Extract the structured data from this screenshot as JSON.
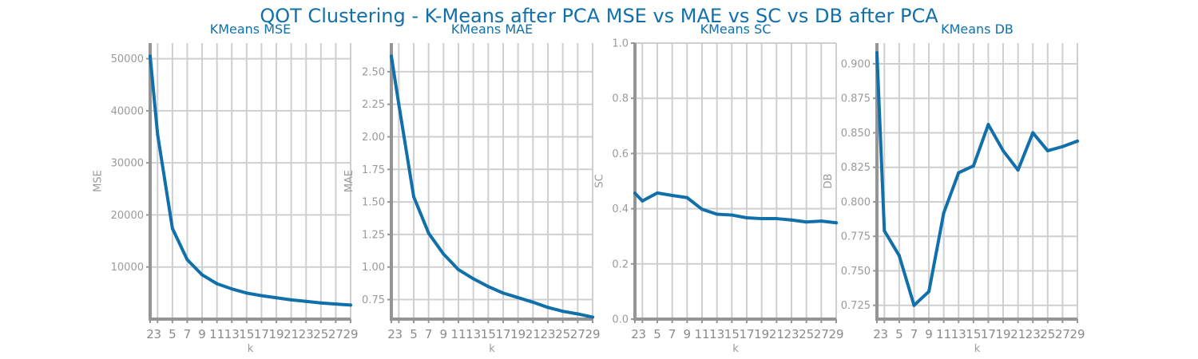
{
  "suptitle": "QOT Clustering - K-Means after PCA MSE vs MAE vs SC vs DB after PCA",
  "colors": {
    "title": "#1170aa",
    "line": "#1170aa",
    "grid": "#cfcfcf",
    "spine": "#959595",
    "tick_text": "#9a9a9a"
  },
  "chart_data": [
    {
      "type": "line",
      "title": "KMeans MSE",
      "xlabel": "k",
      "ylabel": "MSE",
      "x": [
        2,
        3,
        5,
        7,
        9,
        11,
        13,
        15,
        17,
        19,
        21,
        23,
        25,
        27,
        29
      ],
      "x_ticks": [
        2,
        3,
        5,
        7,
        9,
        11,
        13,
        15,
        17,
        19,
        21,
        23,
        25,
        27,
        29
      ],
      "xlim": [
        2,
        29
      ],
      "ylim": [
        0,
        53000
      ],
      "y_ticks": [
        10000,
        20000,
        30000,
        40000,
        50000
      ],
      "grid": true,
      "series": [
        {
          "values": [
            50500,
            35500,
            17400,
            11400,
            8500,
            6800,
            5800,
            5000,
            4500,
            4100,
            3700,
            3400,
            3100,
            2900,
            2700
          ]
        }
      ]
    },
    {
      "type": "line",
      "title": "KMeans MAE",
      "xlabel": "k",
      "ylabel": "MAE",
      "x": [
        2,
        3,
        5,
        7,
        9,
        11,
        13,
        15,
        17,
        19,
        21,
        23,
        25,
        27,
        29
      ],
      "x_ticks": [
        2,
        3,
        5,
        7,
        9,
        11,
        13,
        15,
        17,
        19,
        21,
        23,
        25,
        27,
        29
      ],
      "xlim": [
        2,
        29
      ],
      "ylim": [
        0.6,
        2.72
      ],
      "y_ticks": [
        "0.75",
        "1.00",
        "1.25",
        "1.50",
        "1.75",
        "2.00",
        "2.25",
        "2.50"
      ],
      "grid": true,
      "series": [
        {
          "values": [
            2.62,
            2.25,
            1.54,
            1.26,
            1.1,
            0.98,
            0.91,
            0.85,
            0.8,
            0.765,
            0.73,
            0.69,
            0.66,
            0.64,
            0.615
          ]
        }
      ]
    },
    {
      "type": "line",
      "title": "KMeans SC",
      "xlabel": "k",
      "ylabel": "SC",
      "x": [
        2,
        3,
        5,
        7,
        9,
        11,
        13,
        15,
        17,
        19,
        21,
        23,
        25,
        27,
        29
      ],
      "x_ticks": [
        2,
        3,
        5,
        7,
        9,
        11,
        13,
        15,
        17,
        19,
        21,
        23,
        25,
        27,
        29
      ],
      "xlim": [
        2,
        29
      ],
      "ylim": [
        0,
        1.0
      ],
      "y_ticks": [
        "0.0",
        "0.2",
        "0.4",
        "0.6",
        "0.8",
        "1.0"
      ],
      "grid": true,
      "series": [
        {
          "values": [
            0.456,
            0.428,
            0.457,
            0.448,
            0.44,
            0.398,
            0.38,
            0.377,
            0.367,
            0.364,
            0.364,
            0.359,
            0.352,
            0.355,
            0.349
          ]
        }
      ]
    },
    {
      "type": "line",
      "title": "KMeans DB",
      "xlabel": "k",
      "ylabel": "DB",
      "x": [
        2,
        3,
        5,
        7,
        9,
        11,
        13,
        15,
        17,
        19,
        21,
        23,
        25,
        27,
        29
      ],
      "x_ticks": [
        2,
        3,
        5,
        7,
        9,
        11,
        13,
        15,
        17,
        19,
        21,
        23,
        25,
        27,
        29
      ],
      "xlim": [
        2,
        29
      ],
      "ylim": [
        0.715,
        0.915
      ],
      "y_ticks": [
        "0.725",
        "0.750",
        "0.775",
        "0.800",
        "0.825",
        "0.850",
        "0.875",
        "0.900"
      ],
      "grid": true,
      "series": [
        {
          "values": [
            0.908,
            0.779,
            0.761,
            0.725,
            0.735,
            0.792,
            0.821,
            0.826,
            0.856,
            0.837,
            0.823,
            0.85,
            0.837,
            0.84,
            0.844
          ]
        }
      ]
    }
  ]
}
